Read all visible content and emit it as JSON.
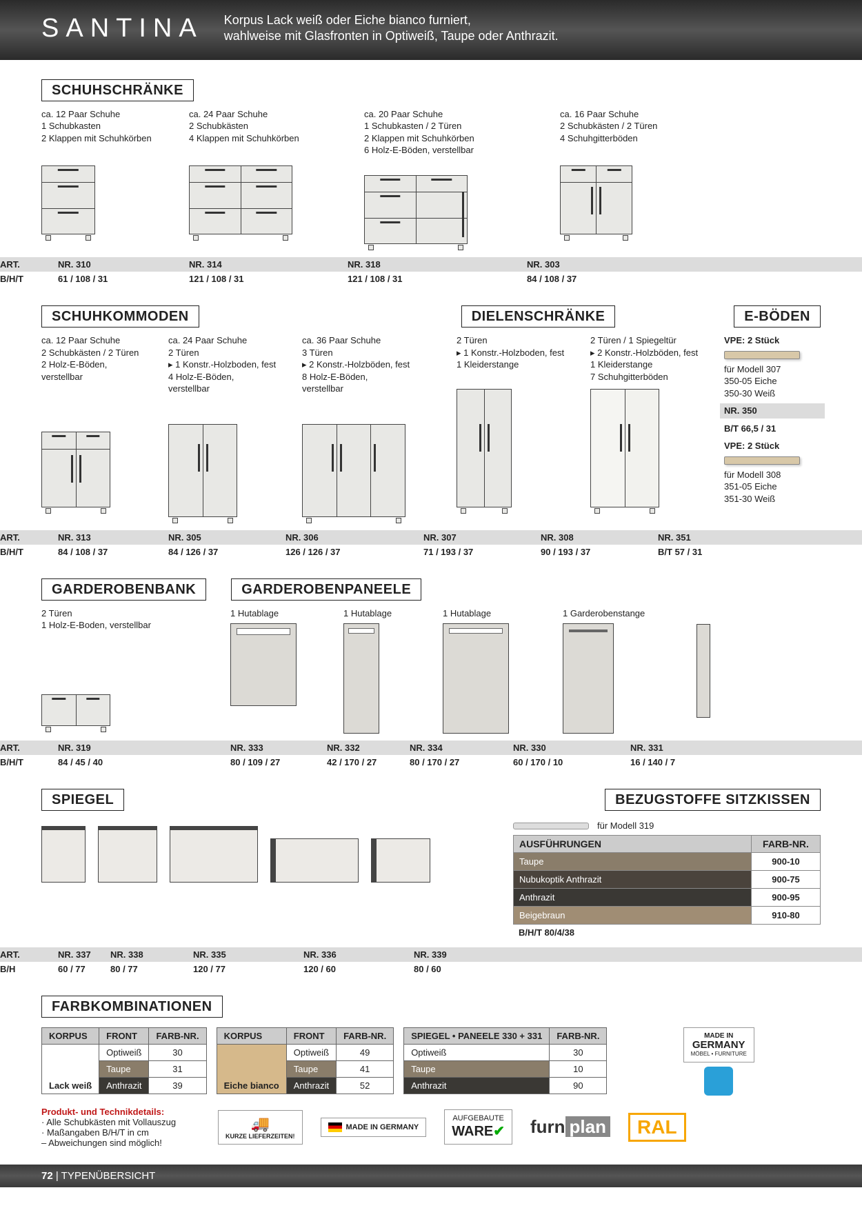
{
  "header": {
    "brand": "SANTINA",
    "tagline": "Korpus Lack weiß oder Eiche bianco furniert,\nwahlweise mit Glasfronten in Optiweiß, Taupe oder Anthrazit."
  },
  "sections": {
    "schuhschranke": {
      "title": "SCHUHSCHRÄNKE",
      "items": [
        {
          "desc": "ca. 12 Paar Schuhe\n1 Schubkasten\n2 Klappen mit Schuhkörben",
          "art": "NR. 310",
          "dim": "61 / 108 / 31"
        },
        {
          "desc": "ca. 24 Paar Schuhe\n2 Schubkästen\n4 Klappen mit Schuhkörben",
          "art": "NR. 314",
          "dim": "121 / 108 / 31"
        },
        {
          "desc": "ca. 20 Paar Schuhe\n1 Schubkasten / 2 Türen\n2 Klappen mit Schuhkörben\n6 Holz-E-Böden, verstellbar",
          "art": "NR. 318",
          "dim": "121 / 108 / 31"
        },
        {
          "desc": "ca. 16 Paar Schuhe\n2 Schubkästen / 2 Türen\n4 Schuhgitterböden",
          "art": "NR. 303",
          "dim": "84 / 108 / 37"
        }
      ]
    },
    "schuhkommoden": {
      "title": "SCHUHKOMMODEN"
    },
    "dielenschranke": {
      "title": "DIELENSCHRÄNKE"
    },
    "eboden": {
      "title": "E-BÖDEN"
    },
    "row2_items": [
      {
        "desc": "ca. 12 Paar Schuhe\n2 Schubkästen / 2 Türen\n2 Holz-E-Böden,\nverstellbar",
        "art": "NR. 313",
        "dim": "84 / 108 / 37"
      },
      {
        "desc": "ca. 24 Paar Schuhe\n2 Türen\n▸ 1 Konstr.-Holzboden, fest\n4 Holz-E-Böden,\nverstellbar",
        "art": "NR. 305",
        "dim": "84 / 126 / 37"
      },
      {
        "desc": "ca. 36 Paar Schuhe\n3 Türen\n▸ 2 Konstr.-Holzböden, fest\n8 Holz-E-Böden,\nverstellbar",
        "art": "NR. 306",
        "dim": "126 / 126 / 37"
      },
      {
        "desc": "2 Türen\n▸ 1 Konstr.-Holzboden, fest\n1 Kleiderstange",
        "art": "NR. 307",
        "dim": "71 / 193 / 37"
      },
      {
        "desc": "2 Türen / 1 Spiegeltür\n▸ 2 Konstr.-Holzböden, fest\n1 Kleiderstange\n7 Schuhgitterböden",
        "art": "NR. 308",
        "dim": "90 / 193 / 37"
      }
    ],
    "eboden_block": {
      "vpe": "VPE: 2 Stück",
      "for307": "für Modell 307",
      "l350a": "350-05",
      "l350at": "Eiche",
      "l350b": "350-30",
      "l350bt": "Weiß",
      "art350": "NR. 350",
      "dim350": "66,5 / 31",
      "for308": "für Modell 308",
      "l351a": "351-05",
      "l351at": "Eiche",
      "l351b": "351-30",
      "l351bt": "Weiß",
      "art351": "NR. 351",
      "dim351": "57 / 31"
    },
    "garderobenbank": {
      "title": "GARDEROBENBANK"
    },
    "garderobenpaneele": {
      "title": "GARDEROBENPANEELE"
    },
    "row3_items": [
      {
        "desc": "2 Türen\n1 Holz-E-Boden, verstellbar",
        "art": "NR. 319",
        "dim": "84 / 45 / 40"
      },
      {
        "desc": "1 Hutablage",
        "art": "NR. 333",
        "dim": "80 / 109 / 27"
      },
      {
        "desc": "1 Hutablage",
        "art": "NR. 332",
        "dim": "42 / 170 / 27"
      },
      {
        "desc": "1 Hutablage",
        "art": "NR. 334",
        "dim": "80 / 170 / 27"
      },
      {
        "desc": "1 Garderobenstange",
        "art": "NR. 330",
        "dim": "60 / 170 / 10"
      },
      {
        "desc": "",
        "art": "NR. 331",
        "dim": "16 / 140 / 7"
      }
    ],
    "spiegel": {
      "title": "SPIEGEL"
    },
    "bezugstoffe": {
      "title": "BEZUGSTOFFE SITZKISSEN"
    },
    "spiegel_items": [
      {
        "art": "NR. 337",
        "dim": "60 / 77"
      },
      {
        "art": "NR. 338",
        "dim": "80 / 77"
      },
      {
        "art": "NR. 335",
        "dim": "120 / 77"
      },
      {
        "art": "NR. 336",
        "dim": "120 / 60"
      },
      {
        "art": "NR. 339",
        "dim": "80 / 60"
      }
    ],
    "sitzkissen": {
      "for319": "für Modell 319",
      "head1": "AUSFÜHRUNGEN",
      "head2": "FARB-NR.",
      "rows": [
        {
          "name": "Taupe",
          "code": "900-10",
          "bg": "#8a7d6a"
        },
        {
          "name": "Nubukoptik Anthrazit",
          "code": "900-75",
          "bg": "#4a433c"
        },
        {
          "name": "Anthrazit",
          "code": "900-95",
          "bg": "#3a3834"
        },
        {
          "name": "Beigebraun",
          "code": "910-80",
          "bg": "#a08d74"
        }
      ],
      "bht": "B/H/T  80/4/38"
    },
    "farbkombinationen": {
      "title": "FARBKOMBINATIONEN"
    },
    "combo": {
      "h_korpus": "KORPUS",
      "h_front": "FRONT",
      "h_farb": "FARB-NR.",
      "t1": {
        "korpus": "Lack weiß",
        "rows": [
          {
            "front": "Optiweiß",
            "code": "30",
            "bg": "#fff",
            "fg": "#222"
          },
          {
            "front": "Taupe",
            "code": "31",
            "bg": "#8a7d6a",
            "fg": "#fff"
          },
          {
            "front": "Anthrazit",
            "code": "39",
            "bg": "#3a3834",
            "fg": "#fff"
          }
        ]
      },
      "t2": {
        "korpus": "Eiche bianco",
        "kbg": "#d6b98b",
        "rows": [
          {
            "front": "Optiweiß",
            "code": "49",
            "bg": "#fff",
            "fg": "#222"
          },
          {
            "front": "Taupe",
            "code": "41",
            "bg": "#8a7d6a",
            "fg": "#fff"
          },
          {
            "front": "Anthrazit",
            "code": "52",
            "bg": "#3a3834",
            "fg": "#fff"
          }
        ]
      },
      "t3": {
        "head": "SPIEGEL • PANEELE 330 + 331",
        "rows": [
          {
            "front": "Optiweiß",
            "code": "30",
            "bg": "#fff",
            "fg": "#222"
          },
          {
            "front": "Taupe",
            "code": "10",
            "bg": "#8a7d6a",
            "fg": "#fff"
          },
          {
            "front": "Anthrazit",
            "code": "90",
            "bg": "#3a3834",
            "fg": "#fff"
          }
        ]
      }
    },
    "footnotes": {
      "title": "Produkt- und Technikdetails:",
      "l1": "· Alle Schubkästen mit Vollauszug",
      "l2": "· Maßangaben B/H/T in cm",
      "l3": "– Abweichungen sind möglich!"
    },
    "badges": {
      "kurze": "KURZE LIEFERZEITEN!",
      "mig": "MADE IN GERMANY",
      "aufgebaute": "AUFGEBAUTE",
      "ware": "WARE",
      "furn1": "furn",
      "furn2": "plan",
      "ral": "RAL",
      "mig2_top": "MADE IN",
      "mig2_mid": "GERMANY",
      "mig2_sub": "MÖBEL • FURNITURE"
    }
  },
  "labels": {
    "art": "ART.",
    "bht": "B/H/T",
    "bh": "B/H",
    "bt": "B/T"
  },
  "footer": {
    "page": "72",
    "title": "| TYPENÜBERSICHT"
  }
}
